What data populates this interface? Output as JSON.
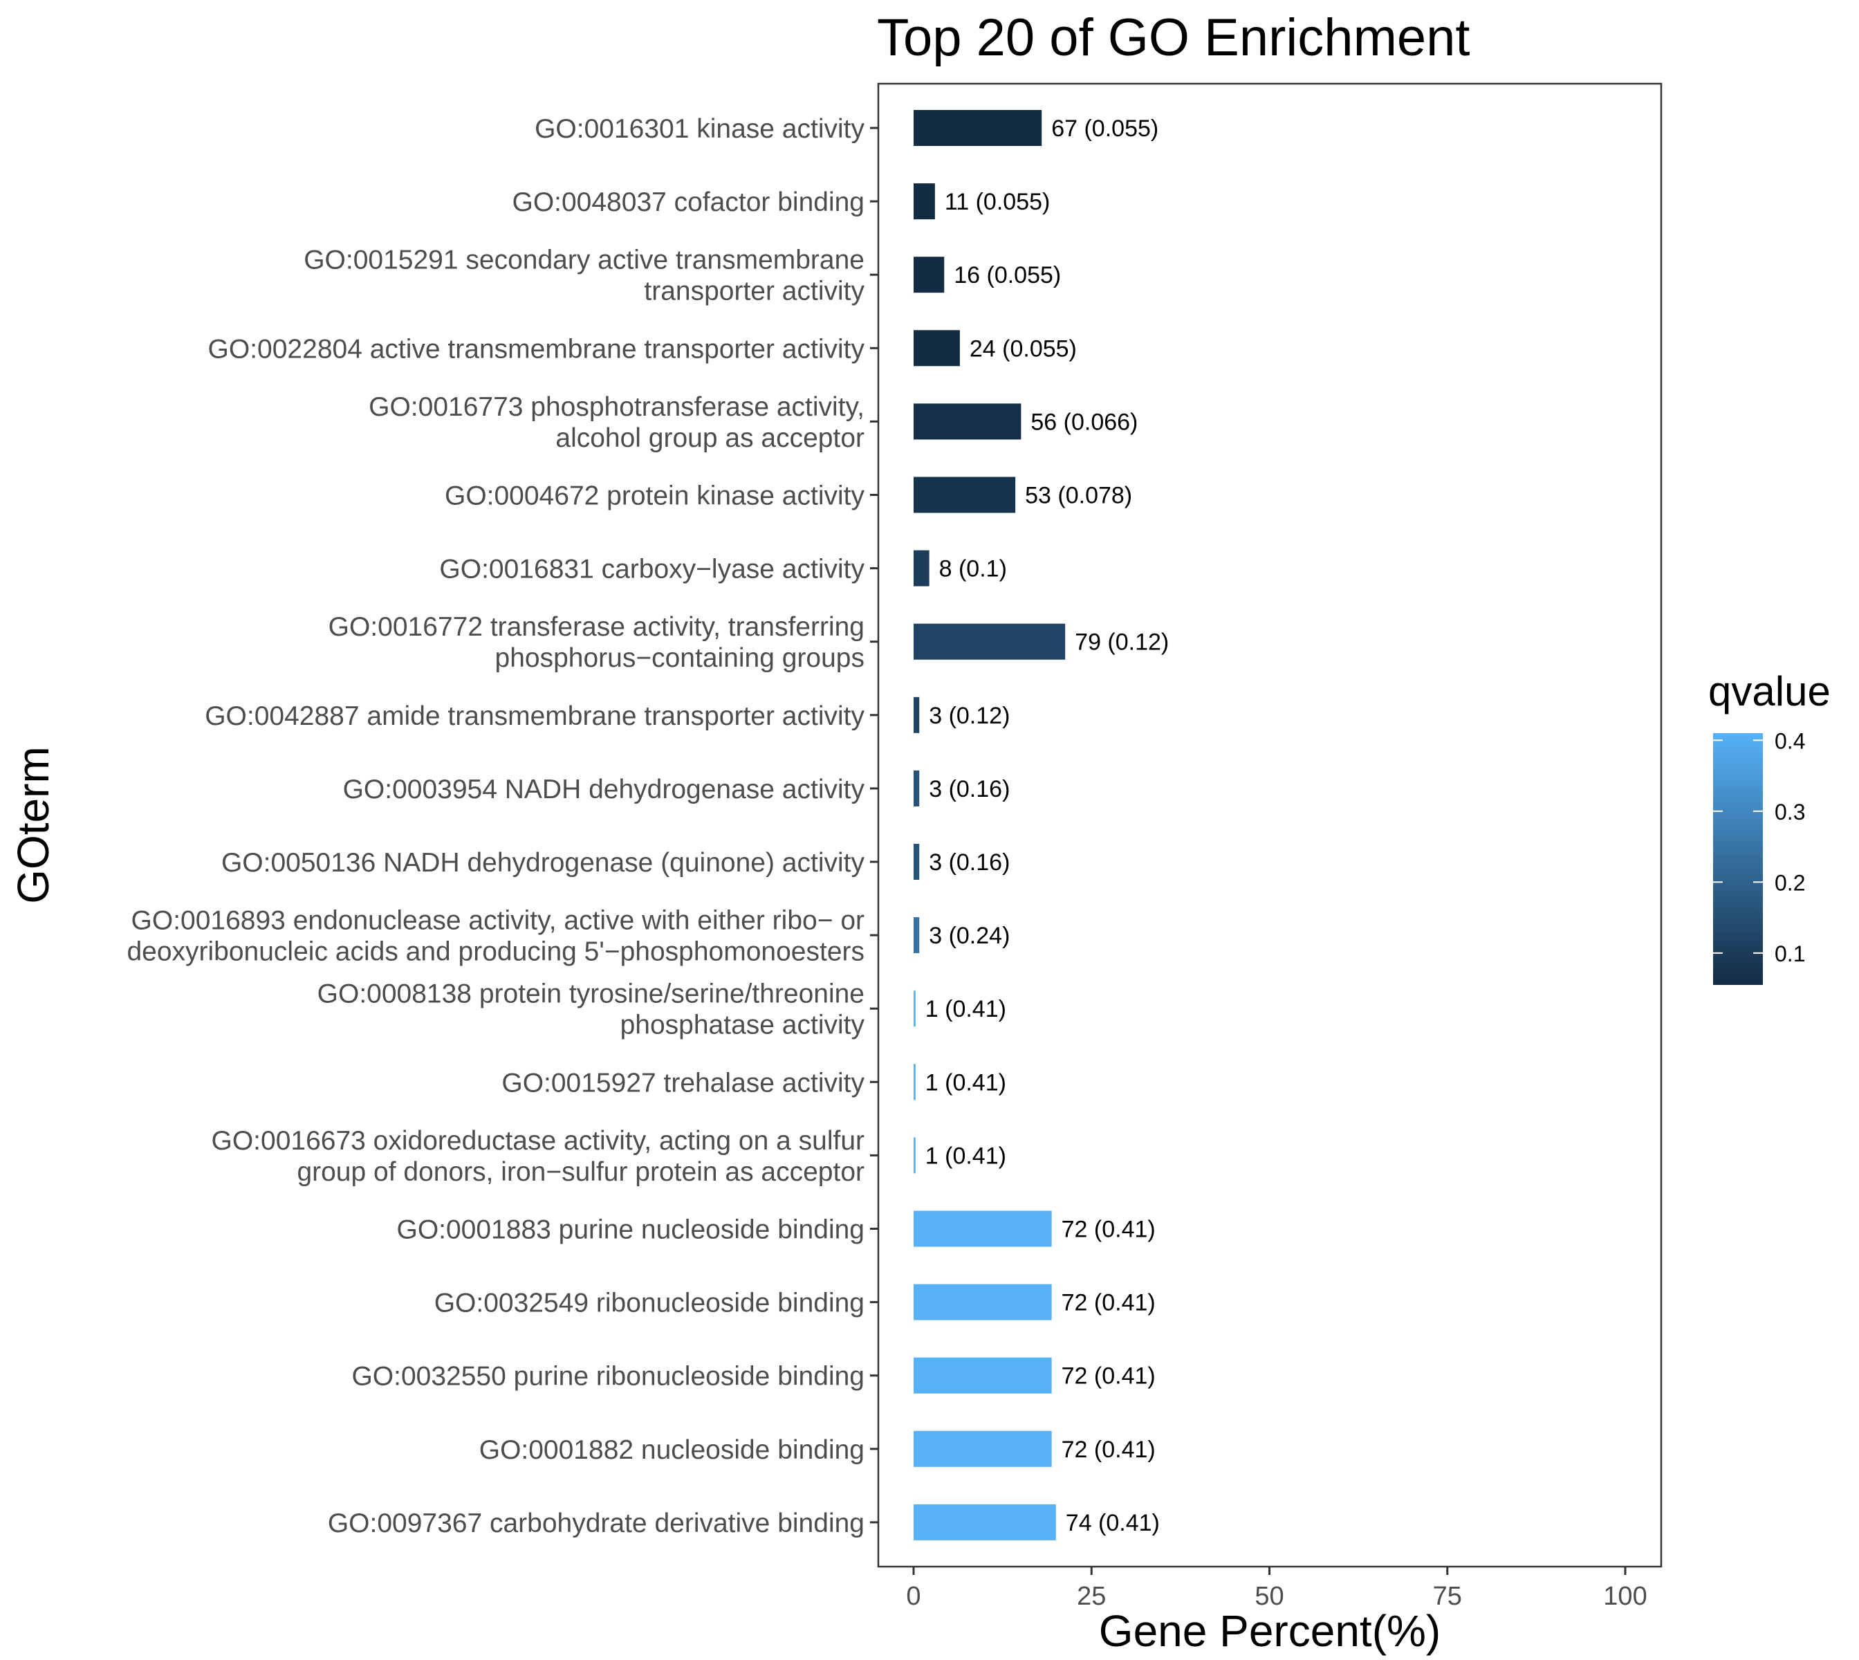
{
  "chart_data": {
    "type": "bar",
    "orientation": "horizontal",
    "title": "Top 20 of GO Enrichment",
    "xlabel": "Gene Percent(%)",
    "ylabel": "GOterm",
    "xlim": [
      0,
      100
    ],
    "xticks": [
      "0",
      "25",
      "50",
      "75",
      "100"
    ],
    "grid": false,
    "legend": {
      "title": "qvalue",
      "position": "right",
      "ticks": [
        "0.1",
        "0.2",
        "0.3",
        "0.4"
      ],
      "tick_values": [
        0.1,
        0.2,
        0.3,
        0.4
      ],
      "range": [
        0.055,
        0.41
      ],
      "low_color": "#132b43",
      "high_color": "#56b1f7"
    },
    "categories": [
      [
        "GO:0016301 kinase activity"
      ],
      [
        "GO:0048037 cofactor binding"
      ],
      [
        "GO:0015291 secondary active transmembrane",
        "transporter activity"
      ],
      [
        "GO:0022804 active transmembrane transporter activity"
      ],
      [
        "GO:0016773 phosphotransferase activity,",
        "alcohol group as acceptor"
      ],
      [
        "GO:0004672 protein kinase activity"
      ],
      [
        "GO:0016831 carboxy−lyase activity"
      ],
      [
        "GO:0016772 transferase activity, transferring",
        "phosphorus−containing groups"
      ],
      [
        "GO:0042887 amide transmembrane transporter activity"
      ],
      [
        "GO:0003954 NADH dehydrogenase activity"
      ],
      [
        "GO:0050136 NADH dehydrogenase (quinone) activity"
      ],
      [
        "GO:0016893 endonuclease activity, active with either ribo− or",
        "deoxyribonucleic acids and producing 5'−phosphomonoesters"
      ],
      [
        "GO:0008138 protein tyrosine/serine/threonine",
        "phosphatase activity"
      ],
      [
        "GO:0015927 trehalase activity"
      ],
      [
        "GO:0016673 oxidoreductase activity, acting on a sulfur",
        "group of donors, iron−sulfur protein as acceptor"
      ],
      [
        "GO:0001883 purine nucleoside binding"
      ],
      [
        "GO:0032549 ribonucleoside binding"
      ],
      [
        "GO:0032550 purine ribonucleoside binding"
      ],
      [
        "GO:0001882 nucleoside binding"
      ],
      [
        "GO:0097367 carbohydrate derivative binding"
      ]
    ],
    "values": [
      18.0,
      3.0,
      4.3,
      6.5,
      15.1,
      14.3,
      2.2,
      21.3,
      0.8,
      0.8,
      0.8,
      0.8,
      0.27,
      0.27,
      0.27,
      19.4,
      19.4,
      19.4,
      19.4,
      20.0
    ],
    "qvalues": [
      0.055,
      0.055,
      0.055,
      0.055,
      0.066,
      0.078,
      0.1,
      0.12,
      0.12,
      0.16,
      0.16,
      0.24,
      0.41,
      0.41,
      0.41,
      0.41,
      0.41,
      0.41,
      0.41,
      0.41
    ],
    "labels": [
      "67 (0.055)",
      "11 (0.055)",
      "16 (0.055)",
      "24 (0.055)",
      "56 (0.066)",
      "53 (0.078)",
      "8 (0.1)",
      "79 (0.12)",
      "3 (0.12)",
      "3 (0.16)",
      "3 (0.16)",
      "3 (0.24)",
      "1 (0.41)",
      "1 (0.41)",
      "1 (0.41)",
      "72 (0.41)",
      "72 (0.41)",
      "72 (0.41)",
      "72 (0.41)",
      "74 (0.41)"
    ]
  }
}
